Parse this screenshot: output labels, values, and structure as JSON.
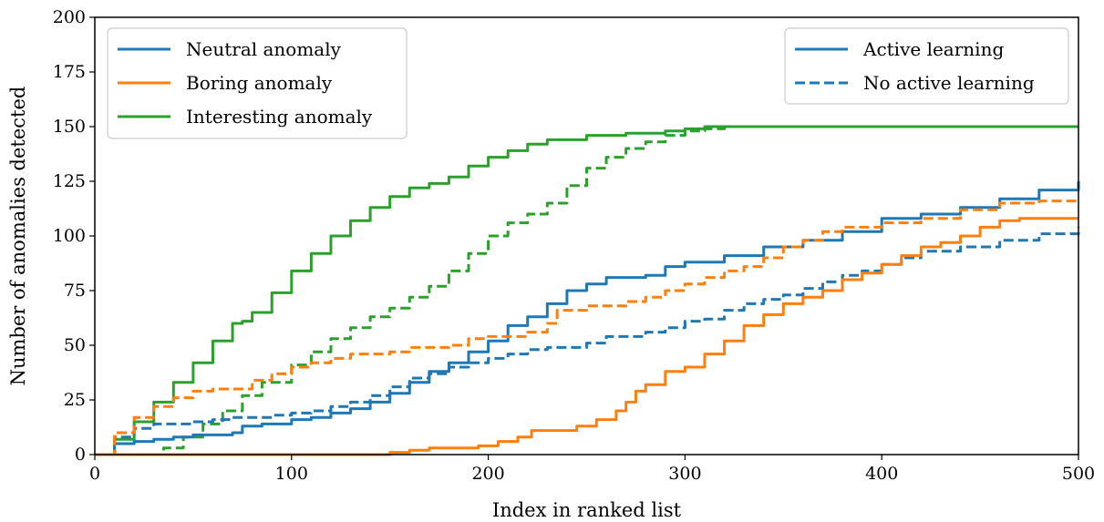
{
  "chart_data": {
    "type": "line",
    "xlabel": "Index in ranked list",
    "ylabel": "Number of anomalies detected",
    "xlim": [
      0,
      500
    ],
    "ylim": [
      0,
      200
    ],
    "xticks": [
      0,
      100,
      200,
      300,
      400,
      500
    ],
    "yticks": [
      0,
      25,
      50,
      75,
      100,
      125,
      150,
      175,
      200
    ],
    "grid": false,
    "colors": {
      "neutral": "#1f77b4",
      "boring": "#ff7f0e",
      "interesting": "#2ca02c",
      "legend_style": "#1f77b4"
    },
    "legend_classes": {
      "placement": "top-left",
      "entries": [
        {
          "label": "Neutral anomaly",
          "color": "#1f77b4"
        },
        {
          "label": "Boring anomaly",
          "color": "#ff7f0e"
        },
        {
          "label": "Interesting anomaly",
          "color": "#2ca02c"
        }
      ]
    },
    "legend_styles": {
      "placement": "top-right",
      "entries": [
        {
          "label": "Active learning",
          "dash": "solid"
        },
        {
          "label": "No active learning",
          "dash": "dashed"
        }
      ]
    },
    "series": [
      {
        "class": "interesting",
        "dash": "solid",
        "color": "#2ca02c",
        "points": [
          [
            0,
            0
          ],
          [
            10,
            7
          ],
          [
            20,
            15
          ],
          [
            30,
            24
          ],
          [
            40,
            33
          ],
          [
            50,
            42
          ],
          [
            60,
            52
          ],
          [
            70,
            60
          ],
          [
            75,
            61
          ],
          [
            80,
            65
          ],
          [
            90,
            74
          ],
          [
            100,
            84
          ],
          [
            110,
            92
          ],
          [
            120,
            100
          ],
          [
            130,
            107
          ],
          [
            140,
            113
          ],
          [
            150,
            118
          ],
          [
            160,
            122
          ],
          [
            170,
            124
          ],
          [
            180,
            127
          ],
          [
            190,
            132
          ],
          [
            200,
            136
          ],
          [
            210,
            139
          ],
          [
            220,
            142
          ],
          [
            230,
            144
          ],
          [
            250,
            146
          ],
          [
            270,
            147
          ],
          [
            290,
            148
          ],
          [
            300,
            149
          ],
          [
            310,
            150
          ],
          [
            500,
            150
          ]
        ]
      },
      {
        "class": "interesting",
        "dash": "dashed",
        "color": "#2ca02c",
        "points": [
          [
            0,
            0
          ],
          [
            28,
            0
          ],
          [
            35,
            3
          ],
          [
            45,
            8
          ],
          [
            55,
            14
          ],
          [
            65,
            20
          ],
          [
            75,
            27
          ],
          [
            85,
            33
          ],
          [
            100,
            41
          ],
          [
            110,
            47
          ],
          [
            120,
            53
          ],
          [
            130,
            58
          ],
          [
            140,
            63
          ],
          [
            150,
            67
          ],
          [
            160,
            72
          ],
          [
            170,
            77
          ],
          [
            180,
            84
          ],
          [
            190,
            92
          ],
          [
            200,
            100
          ],
          [
            210,
            106
          ],
          [
            220,
            110
          ],
          [
            230,
            115
          ],
          [
            240,
            123
          ],
          [
            250,
            131
          ],
          [
            260,
            136
          ],
          [
            270,
            140
          ],
          [
            280,
            143
          ],
          [
            290,
            146
          ],
          [
            300,
            148
          ],
          [
            310,
            149
          ],
          [
            320,
            150
          ],
          [
            500,
            150
          ]
        ]
      },
      {
        "class": "neutral",
        "dash": "solid",
        "color": "#1f77b4",
        "points": [
          [
            0,
            0
          ],
          [
            10,
            5
          ],
          [
            20,
            6
          ],
          [
            30,
            7
          ],
          [
            40,
            8
          ],
          [
            50,
            9
          ],
          [
            60,
            9
          ],
          [
            70,
            10
          ],
          [
            75,
            13
          ],
          [
            85,
            14
          ],
          [
            100,
            16
          ],
          [
            110,
            17
          ],
          [
            120,
            19
          ],
          [
            130,
            21
          ],
          [
            140,
            24
          ],
          [
            150,
            28
          ],
          [
            160,
            33
          ],
          [
            170,
            38
          ],
          [
            180,
            42
          ],
          [
            190,
            47
          ],
          [
            200,
            52
          ],
          [
            210,
            59
          ],
          [
            220,
            63
          ],
          [
            230,
            69
          ],
          [
            240,
            75
          ],
          [
            250,
            78
          ],
          [
            260,
            81
          ],
          [
            280,
            82
          ],
          [
            290,
            86
          ],
          [
            300,
            88
          ],
          [
            320,
            91
          ],
          [
            340,
            95
          ],
          [
            360,
            98
          ],
          [
            380,
            102
          ],
          [
            400,
            108
          ],
          [
            420,
            110
          ],
          [
            440,
            113
          ],
          [
            460,
            117
          ],
          [
            480,
            121
          ],
          [
            500,
            125
          ]
        ]
      },
      {
        "class": "neutral",
        "dash": "dashed",
        "color": "#1f77b4",
        "points": [
          [
            0,
            0
          ],
          [
            10,
            8
          ],
          [
            20,
            12
          ],
          [
            30,
            14
          ],
          [
            50,
            15
          ],
          [
            60,
            16
          ],
          [
            70,
            17
          ],
          [
            90,
            18
          ],
          [
            100,
            19
          ],
          [
            110,
            20
          ],
          [
            120,
            22
          ],
          [
            130,
            24
          ],
          [
            140,
            27
          ],
          [
            150,
            31
          ],
          [
            160,
            35
          ],
          [
            170,
            37
          ],
          [
            180,
            40
          ],
          [
            190,
            42
          ],
          [
            200,
            44
          ],
          [
            210,
            46
          ],
          [
            220,
            48
          ],
          [
            230,
            49
          ],
          [
            250,
            51
          ],
          [
            260,
            54
          ],
          [
            280,
            56
          ],
          [
            290,
            58
          ],
          [
            300,
            61
          ],
          [
            310,
            62
          ],
          [
            320,
            66
          ],
          [
            330,
            69
          ],
          [
            340,
            71
          ],
          [
            350,
            73
          ],
          [
            360,
            76
          ],
          [
            370,
            79
          ],
          [
            380,
            82
          ],
          [
            390,
            84
          ],
          [
            400,
            87
          ],
          [
            410,
            90
          ],
          [
            420,
            93
          ],
          [
            440,
            95
          ],
          [
            460,
            98
          ],
          [
            480,
            101
          ],
          [
            500,
            104
          ]
        ]
      },
      {
        "class": "boring",
        "dash": "solid",
        "color": "#ff7f0e",
        "points": [
          [
            0,
            0
          ],
          [
            145,
            0
          ],
          [
            150,
            1
          ],
          [
            160,
            2
          ],
          [
            170,
            3
          ],
          [
            180,
            3
          ],
          [
            195,
            4
          ],
          [
            205,
            6
          ],
          [
            215,
            8
          ],
          [
            222,
            11
          ],
          [
            235,
            11
          ],
          [
            245,
            13
          ],
          [
            255,
            16
          ],
          [
            265,
            20
          ],
          [
            270,
            24
          ],
          [
            275,
            29
          ],
          [
            280,
            32
          ],
          [
            290,
            38
          ],
          [
            300,
            40
          ],
          [
            310,
            46
          ],
          [
            320,
            52
          ],
          [
            330,
            59
          ],
          [
            340,
            64
          ],
          [
            350,
            69
          ],
          [
            360,
            72
          ],
          [
            370,
            75
          ],
          [
            380,
            80
          ],
          [
            390,
            83
          ],
          [
            400,
            87
          ],
          [
            410,
            91
          ],
          [
            420,
            95
          ],
          [
            430,
            97
          ],
          [
            440,
            100
          ],
          [
            450,
            104
          ],
          [
            460,
            107
          ],
          [
            470,
            108
          ],
          [
            480,
            108
          ],
          [
            500,
            108
          ]
        ]
      },
      {
        "class": "boring",
        "dash": "dashed",
        "color": "#ff7f0e",
        "points": [
          [
            0,
            0
          ],
          [
            10,
            10
          ],
          [
            20,
            17
          ],
          [
            30,
            22
          ],
          [
            40,
            26
          ],
          [
            50,
            29
          ],
          [
            60,
            30
          ],
          [
            70,
            30
          ],
          [
            80,
            34
          ],
          [
            90,
            37
          ],
          [
            100,
            40
          ],
          [
            110,
            42
          ],
          [
            120,
            44
          ],
          [
            130,
            46
          ],
          [
            150,
            47
          ],
          [
            160,
            49
          ],
          [
            180,
            50
          ],
          [
            190,
            53
          ],
          [
            200,
            54
          ],
          [
            220,
            56
          ],
          [
            230,
            60
          ],
          [
            235,
            66
          ],
          [
            250,
            68
          ],
          [
            270,
            70
          ],
          [
            280,
            72
          ],
          [
            290,
            75
          ],
          [
            300,
            78
          ],
          [
            310,
            81
          ],
          [
            320,
            84
          ],
          [
            330,
            86
          ],
          [
            340,
            90
          ],
          [
            350,
            95
          ],
          [
            360,
            98
          ],
          [
            370,
            102
          ],
          [
            380,
            104
          ],
          [
            400,
            106
          ],
          [
            420,
            108
          ],
          [
            440,
            112
          ],
          [
            460,
            115
          ],
          [
            480,
            116
          ],
          [
            500,
            117
          ]
        ]
      }
    ]
  }
}
